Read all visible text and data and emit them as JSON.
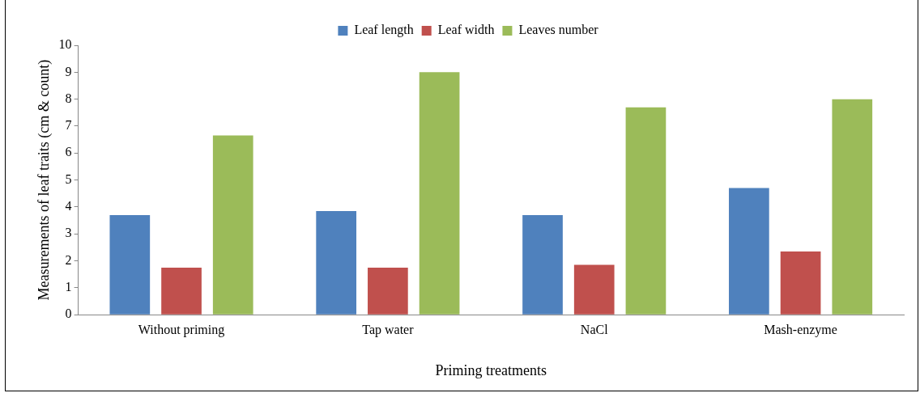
{
  "chart_data": {
    "type": "bar",
    "xlabel": "Priming treatments",
    "ylabel": "Measurements of leaf traits (cm & count)",
    "categories": [
      "Without priming",
      "Tap water",
      "NaCl",
      "Mash-enzyme"
    ],
    "series": [
      {
        "name": "Leaf length",
        "color": "#4f81bd",
        "values": [
          3.7,
          3.85,
          3.7,
          4.7
        ]
      },
      {
        "name": "Leaf width",
        "color": "#c0504d",
        "values": [
          1.75,
          1.75,
          1.85,
          2.35
        ]
      },
      {
        "name": "Leaves number",
        "color": "#9bbb59",
        "values": [
          6.65,
          9.0,
          7.7,
          8.0
        ]
      }
    ],
    "ylim": [
      0,
      10
    ],
    "yticks": [
      0,
      1,
      2,
      3,
      4,
      5,
      6,
      7,
      8,
      9,
      10
    ],
    "grid": false,
    "legend": "top"
  }
}
